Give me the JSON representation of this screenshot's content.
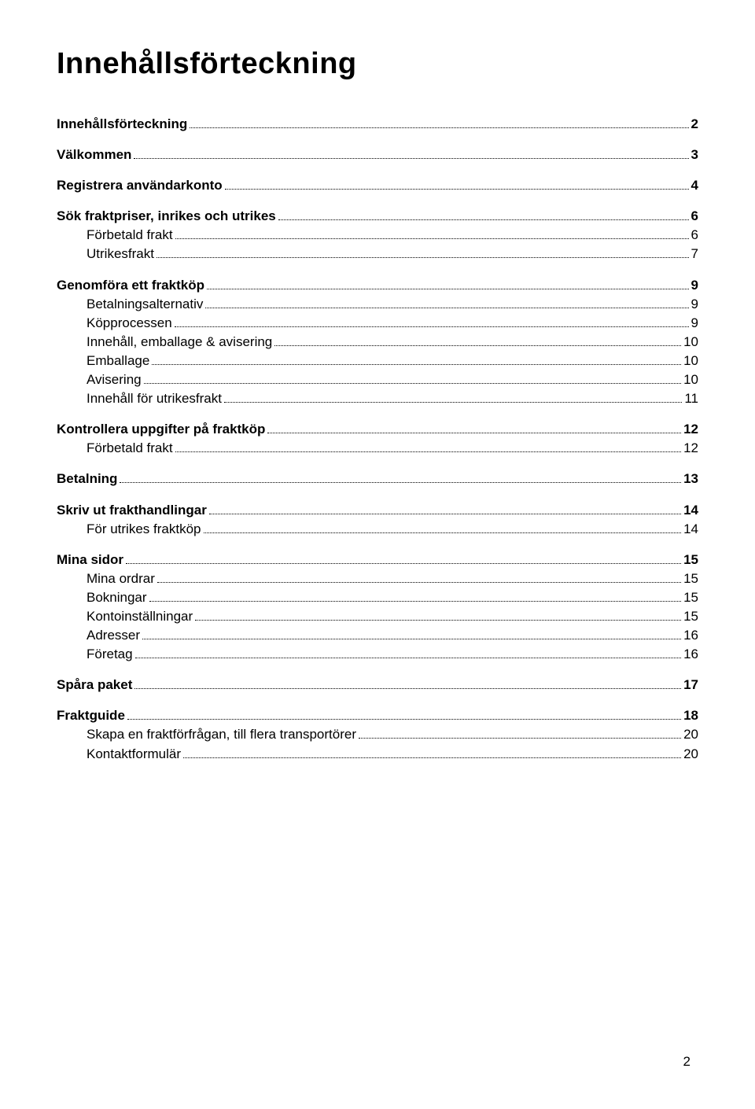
{
  "title": "Innehållsförteckning",
  "page_number": "2",
  "colors": {
    "text": "#000000",
    "background": "#ffffff",
    "leader": "#000000"
  },
  "font": {
    "title_size_pt": 28,
    "body_size_pt": 13,
    "family": "Arial"
  },
  "toc": [
    {
      "label": "Innehållsförteckning",
      "page": "2",
      "level": 0,
      "bold": true
    },
    {
      "gap": true
    },
    {
      "label": "Välkommen",
      "page": "3",
      "level": 0,
      "bold": true
    },
    {
      "gap": true
    },
    {
      "label": "Registrera användarkonto",
      "page": "4",
      "level": 0,
      "bold": true
    },
    {
      "gap": true
    },
    {
      "label": "Sök fraktpriser, inrikes och utrikes",
      "page": "6",
      "level": 0,
      "bold": true
    },
    {
      "label": "Förbetald frakt",
      "page": "6",
      "level": 1,
      "bold": false
    },
    {
      "label": "Utrikesfrakt",
      "page": "7",
      "level": 1,
      "bold": false
    },
    {
      "gap": true
    },
    {
      "label": "Genomföra ett fraktköp",
      "page": "9",
      "level": 0,
      "bold": true
    },
    {
      "label": "Betalningsalternativ",
      "page": "9",
      "level": 1,
      "bold": false
    },
    {
      "label": "Köpprocessen",
      "page": "9",
      "level": 1,
      "bold": false
    },
    {
      "label": "Innehåll, emballage & avisering",
      "page": "10",
      "level": 1,
      "bold": false
    },
    {
      "label": "Emballage",
      "page": "10",
      "level": 1,
      "bold": false
    },
    {
      "label": "Avisering",
      "page": "10",
      "level": 1,
      "bold": false
    },
    {
      "label": "Innehåll för utrikesfrakt",
      "page": "11",
      "level": 1,
      "bold": false
    },
    {
      "gap": true
    },
    {
      "label": "Kontrollera uppgifter på fraktköp",
      "page": "12",
      "level": 0,
      "bold": true
    },
    {
      "label": "Förbetald frakt",
      "page": "12",
      "level": 1,
      "bold": false
    },
    {
      "gap": true
    },
    {
      "label": "Betalning",
      "page": "13",
      "level": 0,
      "bold": true
    },
    {
      "gap": true
    },
    {
      "label": "Skriv ut frakthandlingar",
      "page": "14",
      "level": 0,
      "bold": true
    },
    {
      "label": "För utrikes fraktköp",
      "page": "14",
      "level": 1,
      "bold": false
    },
    {
      "gap": true
    },
    {
      "label": "Mina sidor",
      "page": "15",
      "level": 0,
      "bold": true
    },
    {
      "label": "Mina ordrar",
      "page": "15",
      "level": 1,
      "bold": false
    },
    {
      "label": "Bokningar",
      "page": "15",
      "level": 1,
      "bold": false
    },
    {
      "label": "Kontoinställningar",
      "page": "15",
      "level": 1,
      "bold": false
    },
    {
      "label": "Adresser",
      "page": "16",
      "level": 1,
      "bold": false
    },
    {
      "label": "Företag",
      "page": "16",
      "level": 1,
      "bold": false
    },
    {
      "gap": true
    },
    {
      "label": "Spåra paket",
      "page": "17",
      "level": 0,
      "bold": true
    },
    {
      "gap": true
    },
    {
      "label": "Fraktguide",
      "page": "18",
      "level": 0,
      "bold": true
    },
    {
      "label": "Skapa en fraktförfrågan, till flera transportörer",
      "page": "20",
      "level": 1,
      "bold": false
    },
    {
      "label": "Kontaktformulär",
      "page": "20",
      "level": 1,
      "bold": false
    }
  ]
}
